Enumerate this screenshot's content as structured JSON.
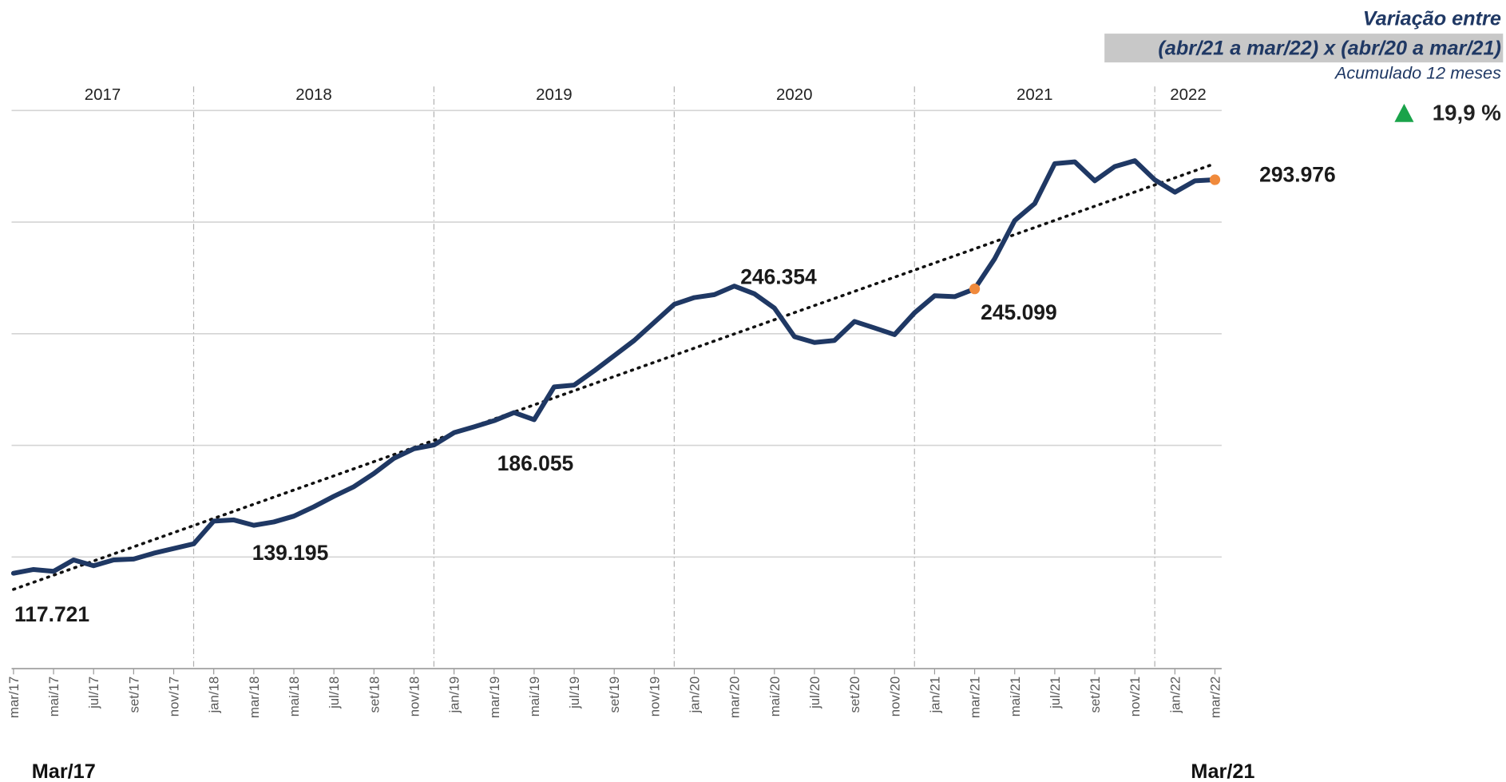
{
  "chart_data": {
    "type": "line",
    "annotations": {
      "title": "Variação entre",
      "period": "(abr/21 a mar/22) x (abr/20 a mar/21)",
      "subtitle": "Acumulado 12 meses",
      "change": "19,9 %",
      "start_label": "Mar/17",
      "end_label": "Mar/21"
    },
    "years": [
      "2017",
      "2018",
      "2019",
      "2020",
      "2021",
      "2022"
    ],
    "categories": [
      "mar/17",
      null,
      "mai/17",
      null,
      "jul/17",
      null,
      "set/17",
      null,
      "nov/17",
      null,
      "jan/18",
      null,
      "mar/18",
      null,
      "mai/18",
      null,
      "jul/18",
      null,
      "set/18",
      null,
      "nov/18",
      null,
      "jan/19",
      null,
      "mar/19",
      null,
      "mai/19",
      null,
      "jul/19",
      null,
      "set/19",
      null,
      "nov/19",
      null,
      "jan/20",
      null,
      "mar/20",
      null,
      "mai/20",
      null,
      "jul/20",
      null,
      "set/20",
      null,
      "nov/20",
      null,
      "jan/21",
      null,
      "mar/21",
      null,
      "mai/21",
      null,
      "jul/21",
      null,
      "set/21",
      null,
      "nov/21",
      null,
      "jan/22",
      null,
      "mar/22"
    ],
    "values": [
      117721,
      119400,
      118600,
      123700,
      121100,
      123700,
      124100,
      126700,
      128800,
      130900,
      141100,
      141600,
      139195,
      140700,
      143300,
      147500,
      152200,
      156500,
      162400,
      169200,
      173500,
      175200,
      180700,
      183300,
      186055,
      189700,
      186500,
      201200,
      202000,
      208400,
      215200,
      222000,
      230100,
      238200,
      241200,
      242500,
      246354,
      242900,
      236500,
      223700,
      221100,
      222000,
      230500,
      227600,
      224600,
      234400,
      242000,
      241600,
      245099,
      258600,
      275700,
      283300,
      301200,
      302000,
      293500,
      299900,
      302500,
      293900,
      288400,
      293500,
      293976
    ],
    "value_labels": [
      "117.721",
      null,
      null,
      null,
      null,
      null,
      null,
      null,
      null,
      null,
      null,
      null,
      "139.195",
      null,
      null,
      null,
      null,
      null,
      null,
      null,
      null,
      null,
      null,
      null,
      "186.055",
      null,
      null,
      null,
      null,
      null,
      null,
      null,
      null,
      null,
      null,
      null,
      "246.354",
      null,
      null,
      null,
      null,
      null,
      null,
      null,
      null,
      null,
      null,
      null,
      "245.099",
      null,
      null,
      null,
      null,
      null,
      null,
      null,
      null,
      null,
      null,
      null,
      "293.976"
    ],
    "color": "#1f3864",
    "markers": {
      "indices": [
        48,
        60
      ],
      "color": "#f08a3c"
    },
    "trend_line": {
      "values": [
        110500,
        301200
      ],
      "style": "dotted",
      "color": "#111111"
    },
    "ylim": [
      75000,
      325000
    ],
    "yticks": [
      75000,
      125000,
      175000,
      225000,
      275000,
      325000
    ],
    "grid": true
  }
}
